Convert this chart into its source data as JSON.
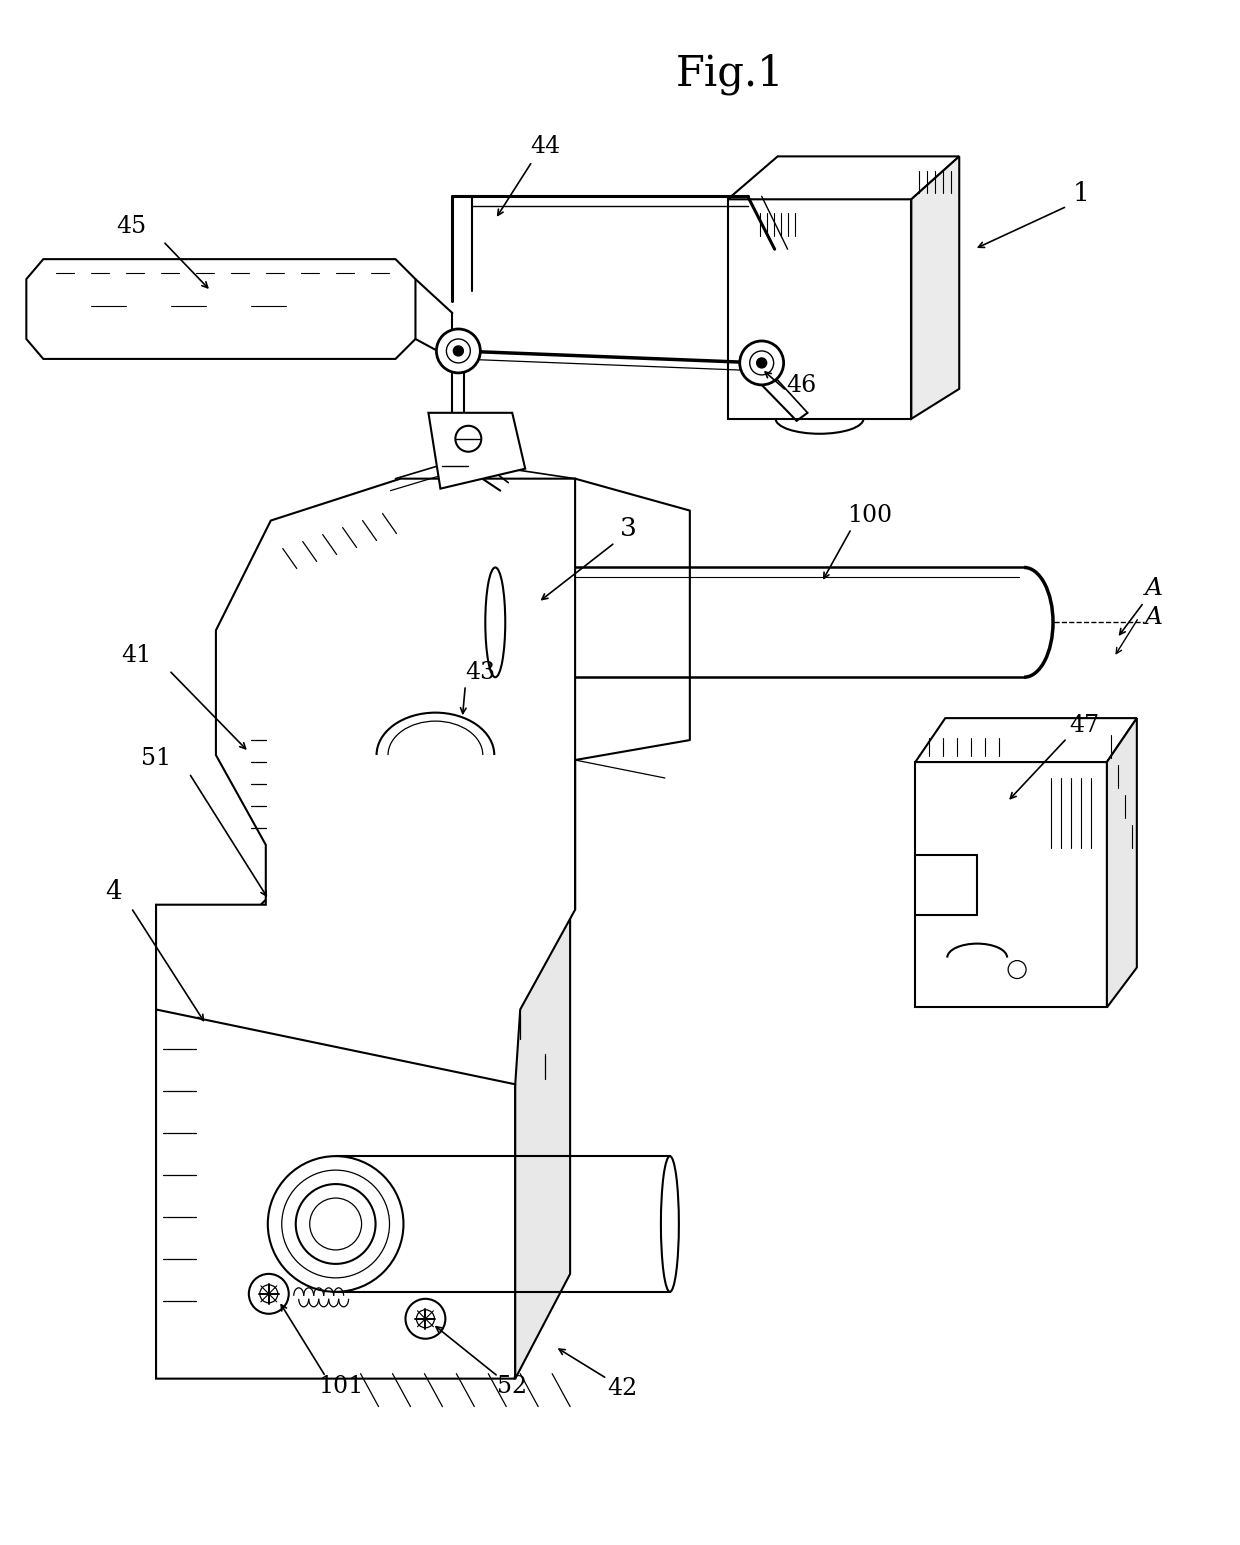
{
  "title": "Fig.1",
  "bg": "#ffffff",
  "lc": "#000000",
  "figsize": [
    12.4,
    15.45
  ],
  "dpi": 100
}
